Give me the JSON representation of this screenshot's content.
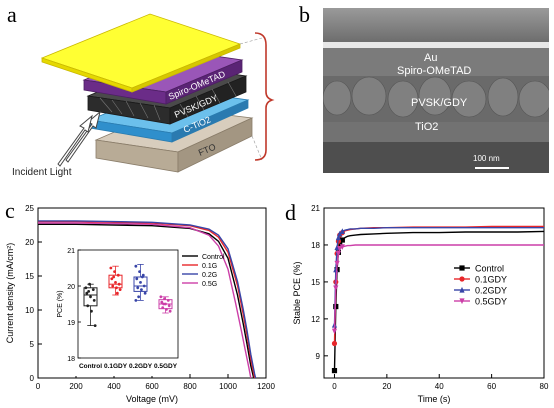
{
  "panels": {
    "a": "a",
    "b": "b",
    "c": "c",
    "d": "d"
  },
  "panel_a": {
    "layers": [
      "Spiro-OMeTAD",
      "PVSK/GDY",
      "C-TiO2",
      "FTO"
    ],
    "incident_light": "Incident Light",
    "colors": {
      "au": "#ffff33",
      "spiro": "#7d3b9b",
      "pvsk": "#3a3a3a",
      "tio2": "#4aa3dd",
      "fto": "#c9bba7",
      "bracket": "#c0392b"
    }
  },
  "panel_b": {
    "labels": [
      "Au",
      "Spiro-OMeTAD",
      "PVSK/GDY",
      "TiO2"
    ],
    "scale_bar": "100 nm"
  },
  "chart_data": [
    {
      "type": "line",
      "title": "",
      "xlabel": "Voltage (mV)",
      "ylabel": "Current density (mA/cm²)",
      "xlim": [
        0,
        1200
      ],
      "ylim": [
        0,
        25
      ],
      "xticks": [
        "0",
        "200",
        "400",
        "600",
        "800",
        "1000",
        "1200"
      ],
      "yticks": [
        "0",
        "5",
        "10",
        "15",
        "20",
        "25"
      ],
      "legend_position": "top-right",
      "series": [
        {
          "name": "Control",
          "color": "#000000",
          "x": [
            0,
            200,
            400,
            600,
            800,
            900,
            950,
            1000,
            1050,
            1080,
            1100,
            1120,
            1135
          ],
          "y": [
            22.6,
            22.6,
            22.5,
            22.4,
            22.0,
            21.2,
            20.1,
            17.6,
            12.2,
            8.0,
            5.0,
            1.8,
            0
          ]
        },
        {
          "name": "0.1G",
          "color": "#e8262a",
          "x": [
            0,
            200,
            400,
            600,
            800,
            900,
            950,
            1000,
            1050,
            1080,
            1100,
            1120,
            1140
          ],
          "y": [
            23.0,
            23.0,
            22.9,
            22.8,
            22.4,
            21.7,
            20.7,
            18.5,
            13.6,
            9.4,
            6.3,
            2.8,
            0
          ]
        },
        {
          "name": "0.2G",
          "color": "#3845a8",
          "x": [
            0,
            200,
            400,
            600,
            800,
            900,
            950,
            1000,
            1050,
            1080,
            1100,
            1120,
            1140,
            1145
          ],
          "y": [
            23.1,
            23.1,
            23.0,
            22.9,
            22.5,
            21.9,
            21.0,
            19.0,
            14.2,
            10.1,
            7.0,
            3.5,
            0.6,
            0
          ]
        },
        {
          "name": "0.5G",
          "color": "#cc3fa8",
          "x": [
            0,
            200,
            400,
            600,
            800,
            900,
            950,
            1000,
            1040,
            1070,
            1090,
            1110,
            1120
          ],
          "y": [
            22.8,
            22.8,
            22.7,
            22.6,
            22.1,
            21.0,
            19.4,
            16.0,
            11.0,
            7.0,
            4.2,
            1.5,
            0
          ]
        }
      ],
      "inset": {
        "type": "box",
        "ylabel": "PCE (%)",
        "ylim": [
          18,
          21
        ],
        "yticks": [
          "18",
          "19",
          "20",
          "21"
        ],
        "categories": [
          "Control",
          "0.1GDY",
          "0.2GDY",
          "0.5GDY"
        ],
        "colors": [
          "#222222",
          "#e8262a",
          "#3845a8",
          "#cc3fa8"
        ],
        "boxes": [
          {
            "min": 18.9,
            "q1": 19.45,
            "median": 19.75,
            "q3": 19.95,
            "max": 20.05
          },
          {
            "min": 19.75,
            "q1": 19.95,
            "median": 20.05,
            "q3": 20.3,
            "max": 20.55
          },
          {
            "min": 19.6,
            "q1": 19.85,
            "median": 20.0,
            "q3": 20.25,
            "max": 20.6
          },
          {
            "min": 19.25,
            "q1": 19.37,
            "median": 19.5,
            "q3": 19.62,
            "max": 19.7
          }
        ],
        "points": [
          [
            19.95,
            20.05,
            19.9,
            19.8,
            19.7,
            19.6,
            19.45,
            19.3,
            18.9,
            19.85
          ],
          [
            20.5,
            20.4,
            20.3,
            20.2,
            20.1,
            20.05,
            20.0,
            19.95,
            19.9,
            20.25,
            19.8
          ],
          [
            20.55,
            20.4,
            20.3,
            20.2,
            20.1,
            20.0,
            19.95,
            19.9,
            19.8,
            19.7,
            20.25,
            19.6
          ],
          [
            19.7,
            19.65,
            19.6,
            19.55,
            19.5,
            19.45,
            19.4,
            19.35,
            19.3,
            19.5
          ]
        ]
      }
    },
    {
      "type": "line",
      "title": "",
      "xlabel": "Time (s)",
      "ylabel": "Stable PCE (%)",
      "xlim": [
        -4,
        80
      ],
      "ylim": [
        7.2,
        21
      ],
      "xticks": [
        "0",
        "20",
        "40",
        "60",
        "80"
      ],
      "yticks": [
        "9",
        "12",
        "15",
        "18",
        "21"
      ],
      "legend_position": "center-right",
      "series": [
        {
          "name": "Control",
          "color": "#000000",
          "marker": "square",
          "x": [
            0,
            0.5,
            1,
            1.5,
            2,
            3,
            4,
            5,
            6,
            8,
            10,
            15,
            20,
            30,
            40,
            50,
            60,
            70,
            80
          ],
          "y": [
            7.8,
            13,
            16,
            17.4,
            18.0,
            18.4,
            18.6,
            18.7,
            18.75,
            18.8,
            18.85,
            18.9,
            18.95,
            19.0,
            19.0,
            19.05,
            19.05,
            19.05,
            19.1
          ]
        },
        {
          "name": "0.1GDY",
          "color": "#e8262a",
          "marker": "circle",
          "x": [
            0,
            0.5,
            1,
            1.5,
            2,
            3,
            4,
            5,
            6,
            8,
            10,
            15,
            20,
            30,
            40,
            50,
            60,
            70,
            80
          ],
          "y": [
            10.0,
            15,
            17.3,
            18.3,
            18.8,
            19.0,
            19.15,
            19.2,
            19.25,
            19.3,
            19.35,
            19.4,
            19.4,
            19.45,
            19.45,
            19.45,
            19.5,
            19.5,
            19.5
          ]
        },
        {
          "name": "0.2GDY",
          "color": "#3845a8",
          "marker": "triangle",
          "x": [
            0,
            0.5,
            1,
            1.5,
            2,
            3,
            4,
            5,
            6,
            8,
            10,
            15,
            20,
            30,
            40,
            50,
            60,
            70,
            80
          ],
          "y": [
            11.5,
            16,
            17.8,
            18.6,
            18.9,
            19.1,
            19.2,
            19.25,
            19.3,
            19.3,
            19.35,
            19.35,
            19.4,
            19.4,
            19.4,
            19.4,
            19.4,
            19.4,
            19.4
          ]
        },
        {
          "name": "0.5GDY",
          "color": "#cc3fa8",
          "marker": "triangle-down",
          "x": [
            0,
            0.5,
            1,
            1.5,
            2,
            3,
            4,
            5,
            6,
            8,
            10,
            15,
            20,
            30,
            40,
            50,
            60,
            70,
            80
          ],
          "y": [
            11.0,
            14.5,
            16.5,
            17.3,
            17.7,
            17.85,
            17.9,
            17.95,
            17.95,
            18.0,
            18.0,
            18.0,
            18.0,
            18.0,
            18.0,
            18.0,
            18.0,
            18.0,
            18.0
          ]
        }
      ]
    }
  ]
}
